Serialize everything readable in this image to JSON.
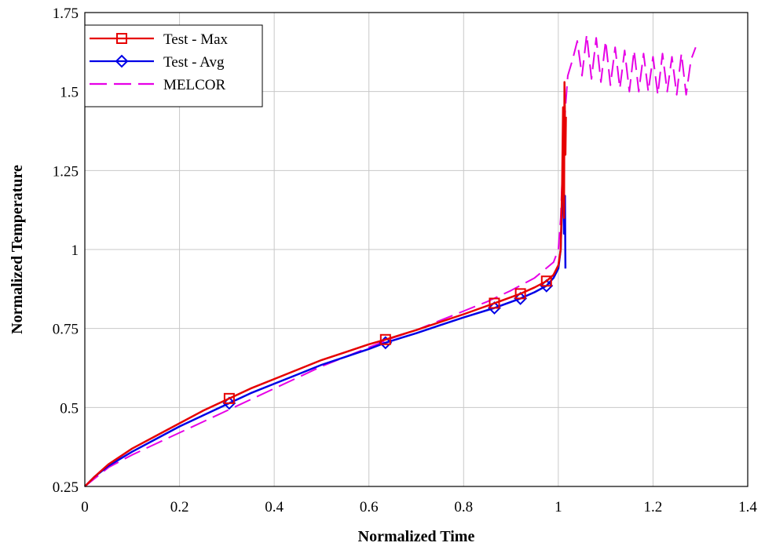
{
  "chart_data": {
    "type": "line",
    "xlabel": "Normalized Time",
    "ylabel": "Normalized Temperature",
    "xlim": [
      0,
      1.4
    ],
    "ylim": [
      0.25,
      1.75
    ],
    "x_ticks": [
      "0",
      "0.2",
      "0.4",
      "0.6",
      "0.8",
      "1",
      "1.2",
      "1.4"
    ],
    "y_ticks": [
      "0.25",
      "0.5",
      "0.75",
      "1",
      "1.25",
      "1.5",
      "1.75"
    ],
    "grid": true,
    "legend_position": "top-left",
    "series": [
      {
        "name": "Test - Max",
        "color": "#e60000",
        "line_style": "solid",
        "marker": "square",
        "points": [
          [
            0,
            0.25
          ],
          [
            0.02,
            0.28
          ],
          [
            0.05,
            0.32
          ],
          [
            0.1,
            0.37
          ],
          [
            0.15,
            0.41
          ],
          [
            0.2,
            0.45
          ],
          [
            0.25,
            0.49
          ],
          [
            0.3,
            0.525
          ],
          [
            0.35,
            0.56
          ],
          [
            0.4,
            0.59
          ],
          [
            0.45,
            0.62
          ],
          [
            0.5,
            0.65
          ],
          [
            0.55,
            0.675
          ],
          [
            0.6,
            0.7
          ],
          [
            0.635,
            0.715
          ],
          [
            0.7,
            0.745
          ],
          [
            0.75,
            0.77
          ],
          [
            0.8,
            0.795
          ],
          [
            0.865,
            0.83
          ],
          [
            0.92,
            0.86
          ],
          [
            0.95,
            0.88
          ],
          [
            0.975,
            0.9
          ],
          [
            0.99,
            0.92
          ],
          [
            1.0,
            0.95
          ],
          [
            1.005,
            1.0
          ],
          [
            1.008,
            1.2
          ],
          [
            1.01,
            1.45
          ],
          [
            1.012,
            1.1
          ],
          [
            1.013,
            1.53
          ],
          [
            1.015,
            1.3
          ],
          [
            1.016,
            1.42
          ]
        ],
        "marker_x": [
          0.305,
          0.635,
          0.865,
          0.92,
          0.975
        ]
      },
      {
        "name": "Test - Avg",
        "color": "#0000e6",
        "line_style": "solid",
        "marker": "diamond",
        "points": [
          [
            0,
            0.25
          ],
          [
            0.02,
            0.28
          ],
          [
            0.05,
            0.315
          ],
          [
            0.1,
            0.36
          ],
          [
            0.15,
            0.4
          ],
          [
            0.2,
            0.44
          ],
          [
            0.25,
            0.475
          ],
          [
            0.3,
            0.51
          ],
          [
            0.35,
            0.545
          ],
          [
            0.4,
            0.575
          ],
          [
            0.45,
            0.605
          ],
          [
            0.5,
            0.635
          ],
          [
            0.55,
            0.66
          ],
          [
            0.6,
            0.685
          ],
          [
            0.635,
            0.705
          ],
          [
            0.7,
            0.735
          ],
          [
            0.75,
            0.76
          ],
          [
            0.8,
            0.785
          ],
          [
            0.865,
            0.815
          ],
          [
            0.92,
            0.845
          ],
          [
            0.95,
            0.865
          ],
          [
            0.975,
            0.885
          ],
          [
            0.99,
            0.91
          ],
          [
            1.0,
            0.94
          ],
          [
            1.005,
            1.0
          ],
          [
            1.008,
            1.15
          ],
          [
            1.01,
            1.3
          ],
          [
            1.012,
            1.05
          ],
          [
            1.014,
            1.17
          ],
          [
            1.015,
            0.94
          ]
        ],
        "marker_x": [
          0.305,
          0.635,
          0.865,
          0.92,
          0.975
        ]
      },
      {
        "name": "MELCOR",
        "color": "#e600e6",
        "line_style": "dashed",
        "marker": "none",
        "points": [
          [
            0,
            0.25
          ],
          [
            0.05,
            0.31
          ],
          [
            0.1,
            0.35
          ],
          [
            0.15,
            0.385
          ],
          [
            0.2,
            0.42
          ],
          [
            0.25,
            0.455
          ],
          [
            0.3,
            0.49
          ],
          [
            0.35,
            0.525
          ],
          [
            0.4,
            0.56
          ],
          [
            0.45,
            0.595
          ],
          [
            0.5,
            0.63
          ],
          [
            0.55,
            0.66
          ],
          [
            0.6,
            0.69
          ],
          [
            0.65,
            0.72
          ],
          [
            0.7,
            0.745
          ],
          [
            0.75,
            0.775
          ],
          [
            0.8,
            0.805
          ],
          [
            0.85,
            0.835
          ],
          [
            0.9,
            0.87
          ],
          [
            0.95,
            0.91
          ],
          [
            0.99,
            0.96
          ],
          [
            1.0,
            1.0
          ],
          [
            1.005,
            1.1
          ],
          [
            1.01,
            1.3
          ],
          [
            1.015,
            1.45
          ],
          [
            1.02,
            1.55
          ],
          [
            1.03,
            1.6
          ],
          [
            1.04,
            1.66
          ],
          [
            1.05,
            1.55
          ],
          [
            1.06,
            1.68
          ],
          [
            1.07,
            1.54
          ],
          [
            1.08,
            1.67
          ],
          [
            1.09,
            1.53
          ],
          [
            1.1,
            1.66
          ],
          [
            1.11,
            1.52
          ],
          [
            1.12,
            1.64
          ],
          [
            1.13,
            1.51
          ],
          [
            1.14,
            1.63
          ],
          [
            1.15,
            1.5
          ],
          [
            1.16,
            1.63
          ],
          [
            1.17,
            1.5
          ],
          [
            1.18,
            1.62
          ],
          [
            1.19,
            1.5
          ],
          [
            1.2,
            1.61
          ],
          [
            1.21,
            1.49
          ],
          [
            1.22,
            1.62
          ],
          [
            1.23,
            1.5
          ],
          [
            1.24,
            1.61
          ],
          [
            1.25,
            1.49
          ],
          [
            1.26,
            1.62
          ],
          [
            1.27,
            1.49
          ],
          [
            1.28,
            1.6
          ],
          [
            1.29,
            1.64
          ]
        ]
      }
    ]
  }
}
